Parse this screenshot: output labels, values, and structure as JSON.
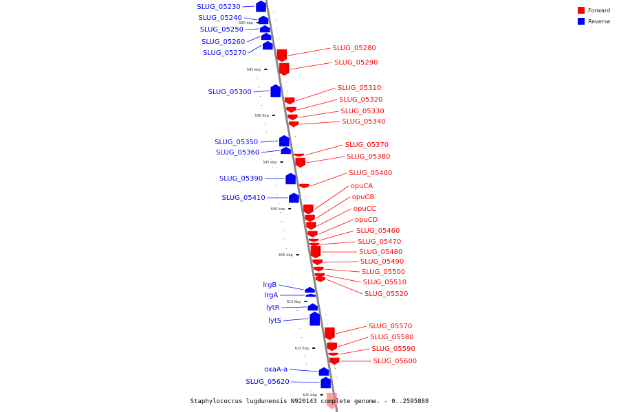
{
  "caption": "Staphylococcus lugdunensis N920143 complete genome. - 0..2595888",
  "legend": [
    {
      "label": "Forward",
      "color": "#ff0000"
    },
    {
      "label": "Reverse",
      "color": "#0000ff"
    }
  ],
  "colors": {
    "forward": "#ff0000",
    "reverse": "#0000ff",
    "backbone": "#888888"
  },
  "scale_ticks": [
    "580 kbp",
    "585 kbp",
    "590 kbp",
    "595 kbp",
    "600 kbp",
    "605 kbp",
    "610 kbp",
    "615 kbp",
    "620 kbp"
  ],
  "genes": [
    {
      "name": "SLUG_05230",
      "strand": "reverse"
    },
    {
      "name": "SLUG_05240",
      "strand": "reverse"
    },
    {
      "name": "SLUG_05250",
      "strand": "reverse"
    },
    {
      "name": "SLUG_05260",
      "strand": "reverse"
    },
    {
      "name": "SLUG_05270",
      "strand": "reverse"
    },
    {
      "name": "SLUG_05280",
      "strand": "forward"
    },
    {
      "name": "SLUG_05290",
      "strand": "forward"
    },
    {
      "name": "SLUG_05300",
      "strand": "reverse"
    },
    {
      "name": "SLUG_05310",
      "strand": "forward"
    },
    {
      "name": "SLUG_05320",
      "strand": "forward"
    },
    {
      "name": "SLUG_05330",
      "strand": "forward"
    },
    {
      "name": "SLUG_05340",
      "strand": "forward"
    },
    {
      "name": "SLUG_05350",
      "strand": "reverse"
    },
    {
      "name": "SLUG_05360",
      "strand": "reverse"
    },
    {
      "name": "SLUG_05370",
      "strand": "forward"
    },
    {
      "name": "SLUG_05380",
      "strand": "forward"
    },
    {
      "name": "SLUG_05390",
      "strand": "reverse"
    },
    {
      "name": "SLUG_05400",
      "strand": "forward"
    },
    {
      "name": "SLUG_05410",
      "strand": "reverse"
    },
    {
      "name": "opuCA",
      "strand": "forward"
    },
    {
      "name": "opuCB",
      "strand": "forward"
    },
    {
      "name": "opuCC",
      "strand": "forward"
    },
    {
      "name": "opuCD",
      "strand": "forward"
    },
    {
      "name": "SLUG_05460",
      "strand": "forward"
    },
    {
      "name": "SLUG_05470",
      "strand": "forward"
    },
    {
      "name": "SLUG_05480",
      "strand": "forward"
    },
    {
      "name": "SLUG_05490",
      "strand": "forward"
    },
    {
      "name": "SLUG_05500",
      "strand": "forward"
    },
    {
      "name": "SLUG_05510",
      "strand": "forward"
    },
    {
      "name": "SLUG_05520",
      "strand": "forward"
    },
    {
      "name": "lrgB",
      "strand": "reverse"
    },
    {
      "name": "lrgA",
      "strand": "reverse"
    },
    {
      "name": "lytR",
      "strand": "reverse"
    },
    {
      "name": "lytS",
      "strand": "reverse"
    },
    {
      "name": "SLUG_05570",
      "strand": "forward"
    },
    {
      "name": "SLUG_05580",
      "strand": "forward"
    },
    {
      "name": "SLUG_05590",
      "strand": "forward"
    },
    {
      "name": "SLUG_05600",
      "strand": "forward"
    },
    {
      "name": "oxaA-a",
      "strand": "reverse"
    },
    {
      "name": "SLUG_05620",
      "strand": "reverse"
    }
  ]
}
